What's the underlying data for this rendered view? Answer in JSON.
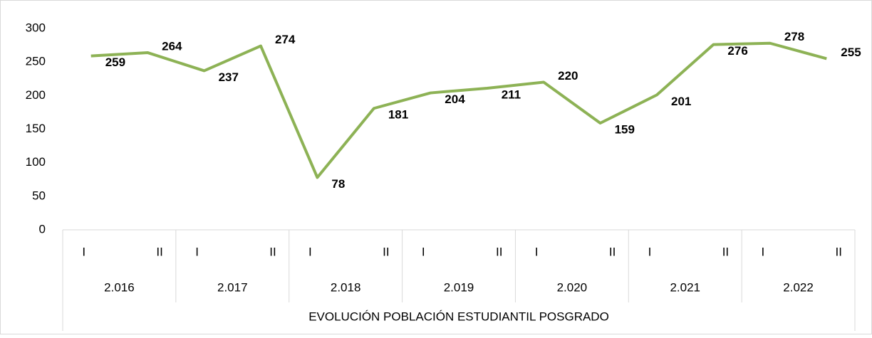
{
  "chart_data": {
    "type": "line",
    "categories": [
      "I",
      "II",
      "I",
      "II",
      "I",
      "II",
      "I",
      "II",
      "I",
      "II",
      "I",
      "II",
      "I",
      "II"
    ],
    "groups": [
      "2.016",
      "2.017",
      "2.018",
      "2.019",
      "2.020",
      "2.021",
      "2.022"
    ],
    "x_label": "EVOLUCIÓN POBLACIÓN ESTUDIANTIL POSGRADO",
    "values": [
      259,
      264,
      237,
      274,
      78,
      181,
      204,
      211,
      220,
      159,
      201,
      276,
      278,
      255
    ],
    "color": "#8db255",
    "ylim": [
      0,
      300
    ],
    "yticks": [
      0,
      50,
      100,
      150,
      200,
      250,
      300
    ],
    "grid": false
  }
}
